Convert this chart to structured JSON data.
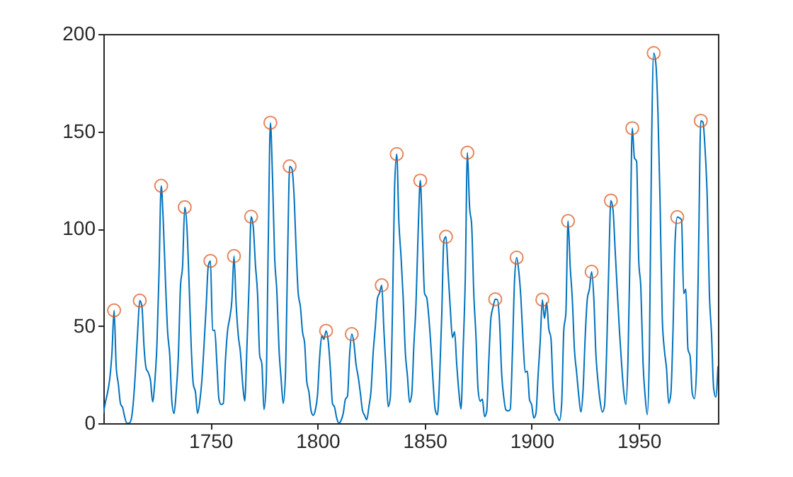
{
  "chart_data": {
    "type": "line",
    "xlim": [
      1700,
      1987
    ],
    "xticks": [
      1750,
      1800,
      1850,
      1900,
      1950
    ],
    "ylim": [
      0,
      200
    ],
    "yticks": [
      0,
      50,
      100,
      150,
      200
    ],
    "grid": false,
    "series": [
      {
        "color": "#0072bd",
        "x": [
          1700,
          1701,
          1702,
          1703,
          1704,
          1705,
          1706,
          1707,
          1708,
          1709,
          1710,
          1711,
          1712,
          1713,
          1714,
          1715,
          1716,
          1717,
          1718,
          1719,
          1720,
          1721,
          1722,
          1723,
          1724,
          1725,
          1726,
          1727,
          1728,
          1729,
          1730,
          1731,
          1732,
          1733,
          1734,
          1735,
          1736,
          1737,
          1738,
          1739,
          1740,
          1741,
          1742,
          1743,
          1744,
          1745,
          1746,
          1747,
          1748,
          1749,
          1750,
          1751,
          1752,
          1753,
          1754,
          1755,
          1756,
          1757,
          1758,
          1759,
          1760,
          1761,
          1762,
          1763,
          1764,
          1765,
          1766,
          1767,
          1768,
          1769,
          1770,
          1771,
          1772,
          1773,
          1774,
          1775,
          1776,
          1777,
          1778,
          1779,
          1780,
          1781,
          1782,
          1783,
          1784,
          1785,
          1786,
          1787,
          1788,
          1789,
          1790,
          1791,
          1792,
          1793,
          1794,
          1795,
          1796,
          1797,
          1798,
          1799,
          1800,
          1801,
          1802,
          1803,
          1804,
          1805,
          1806,
          1807,
          1808,
          1809,
          1810,
          1811,
          1812,
          1813,
          1814,
          1815,
          1816,
          1817,
          1818,
          1819,
          1820,
          1821,
          1822,
          1823,
          1824,
          1825,
          1826,
          1827,
          1828,
          1829,
          1830,
          1831,
          1832,
          1833,
          1834,
          1835,
          1836,
          1837,
          1838,
          1839,
          1840,
          1841,
          1842,
          1843,
          1844,
          1845,
          1846,
          1847,
          1848,
          1849,
          1850,
          1851,
          1852,
          1853,
          1854,
          1855,
          1856,
          1857,
          1858,
          1859,
          1860,
          1861,
          1862,
          1863,
          1864,
          1865,
          1866,
          1867,
          1868,
          1869,
          1870,
          1871,
          1872,
          1873,
          1874,
          1875,
          1876,
          1877,
          1878,
          1879,
          1880,
          1881,
          1882,
          1883,
          1884,
          1885,
          1886,
          1887,
          1888,
          1889,
          1890,
          1891,
          1892,
          1893,
          1894,
          1895,
          1896,
          1897,
          1898,
          1899,
          1900,
          1901,
          1902,
          1903,
          1904,
          1905,
          1906,
          1907,
          1908,
          1909,
          1910,
          1911,
          1912,
          1913,
          1914,
          1915,
          1916,
          1917,
          1918,
          1919,
          1920,
          1921,
          1922,
          1923,
          1924,
          1925,
          1926,
          1927,
          1928,
          1929,
          1930,
          1931,
          1932,
          1933,
          1934,
          1935,
          1936,
          1937,
          1938,
          1939,
          1940,
          1941,
          1942,
          1943,
          1944,
          1945,
          1946,
          1947,
          1948,
          1949,
          1950,
          1951,
          1952,
          1953,
          1954,
          1955,
          1956,
          1957,
          1958,
          1959,
          1960,
          1961,
          1962,
          1963,
          1964,
          1965,
          1966,
          1967,
          1968,
          1969,
          1970,
          1971,
          1972,
          1973,
          1974,
          1975,
          1976,
          1977,
          1978,
          1979,
          1980,
          1981,
          1982,
          1983,
          1984,
          1985,
          1986,
          1987
        ],
        "values": [
          5,
          11,
          16,
          23,
          36,
          58,
          29,
          20,
          10,
          8,
          3,
          0,
          0,
          2,
          11,
          27,
          47,
          63,
          60,
          39,
          28,
          26,
          22,
          11,
          21,
          40,
          78,
          122,
          103,
          73,
          47,
          35,
          11,
          5,
          16,
          34,
          70,
          81,
          111,
          101,
          73,
          40,
          20,
          16,
          5,
          11,
          22,
          40,
          60,
          80.9,
          83.4,
          47.7,
          47.8,
          30.7,
          12.2,
          9.6,
          10.2,
          32.4,
          47.6,
          54,
          62.9,
          85.9,
          61.2,
          45.1,
          36.4,
          20.9,
          11.4,
          37.8,
          69.8,
          106.1,
          100.8,
          81.6,
          66.5,
          34.8,
          30.6,
          7,
          19.8,
          92.5,
          154.4,
          125.9,
          84.8,
          68.1,
          38.5,
          22.8,
          10.2,
          24.1,
          82.9,
          132,
          130.9,
          118.1,
          89.9,
          66.6,
          60,
          46.9,
          41,
          21.3,
          16,
          6.4,
          4.1,
          6.8,
          14.5,
          34,
          45,
          43.1,
          47.5,
          42.2,
          28.1,
          10.1,
          8.1,
          2.5,
          0,
          1.4,
          5,
          12.2,
          13.9,
          35.4,
          45.8,
          41.1,
          30.1,
          23.9,
          15.6,
          6.6,
          4,
          1.8,
          8.5,
          16.6,
          36.3,
          49.6,
          64.2,
          67,
          70.9,
          47.8,
          27.5,
          8.5,
          13.2,
          56.9,
          121.5,
          138.3,
          103.2,
          85.7,
          64.6,
          36.7,
          24.2,
          10.7,
          15,
          40.1,
          61.5,
          98.5,
          124.7,
          96.3,
          66.6,
          64.5,
          54.1,
          39,
          20.6,
          6.7,
          4.3,
          22.7,
          54.8,
          93.8,
          95.8,
          77.2,
          59.1,
          44,
          47,
          30.5,
          16.3,
          7.3,
          37.6,
          74,
          139,
          111.2,
          101.6,
          66.2,
          44.7,
          17,
          11.3,
          12.4,
          3.4,
          6,
          32.3,
          54.3,
          59.7,
          63.7,
          63.5,
          52.2,
          25.4,
          13.1,
          6.8,
          6.3,
          7.1,
          35.6,
          73,
          85.1,
          78,
          64,
          41.8,
          26.2,
          26.7,
          12.1,
          9.5,
          2.7,
          5,
          24.4,
          42,
          63.5,
          53.8,
          62,
          48.5,
          43.9,
          18.6,
          5.7,
          3.6,
          1.4,
          9.6,
          47.4,
          57.1,
          103.9,
          80.6,
          63.6,
          37.6,
          26.1,
          14.2,
          5.8,
          16.7,
          44.3,
          63.9,
          69,
          77.8,
          64.9,
          35.7,
          21.2,
          11.1,
          5.7,
          8.7,
          36.1,
          79.7,
          114.4,
          109.6,
          88.8,
          67.8,
          47.5,
          30.6,
          16.3,
          9.6,
          33.2,
          92.6,
          151.6,
          136.3,
          134.7,
          83.9,
          69.4,
          31.5,
          13.9,
          4.4,
          38,
          141.7,
          190.2,
          184.8,
          159,
          112.3,
          53.9,
          37.5,
          27.9,
          10.2,
          15.1,
          47,
          93.8,
          105.9,
          105.5,
          104.5,
          66.6,
          68.9,
          38,
          34.5,
          15.5,
          12.6,
          27.5,
          92.5,
          155.4,
          154.7,
          140.5,
          115.9,
          66.6,
          45.9,
          17.9,
          13.4,
          29.3
        ]
      },
      {
        "type": "scatter",
        "marker": "circle",
        "color": "#d95319",
        "x": [
          1705,
          1717,
          1727,
          1738,
          1750,
          1761,
          1769,
          1778,
          1787,
          1804,
          1816,
          1830,
          1837,
          1848,
          1860,
          1870,
          1883,
          1893,
          1905,
          1917,
          1928,
          1937,
          1947,
          1957,
          1968,
          1979
        ],
        "values": [
          58,
          63,
          122,
          111,
          83.4,
          85.9,
          106.1,
          154.4,
          132,
          47.5,
          45.8,
          70.9,
          138.3,
          124.7,
          95.8,
          139,
          63.7,
          85.1,
          63.5,
          103.9,
          77.8,
          114.4,
          151.6,
          190.2,
          105.9,
          155.4
        ]
      }
    ]
  }
}
